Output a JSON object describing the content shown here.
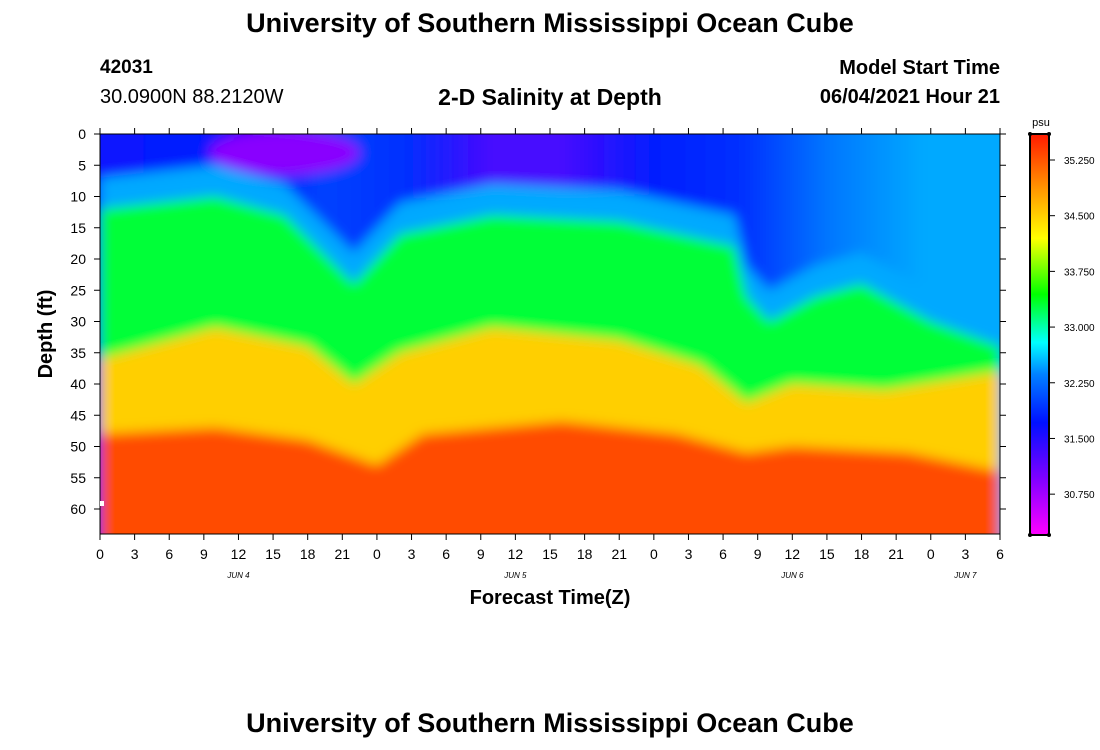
{
  "header": {
    "title": "University of Southern Mississippi Ocean Cube",
    "station_id": "42031",
    "station_coords": "30.0900N  88.2120W",
    "plot_title": "2-D Salinity at Depth",
    "model_start_label": "Model Start Time",
    "model_start_value": "06/04/2021 Hour 21"
  },
  "footer": {
    "title": "University of Southern Mississippi Ocean Cube"
  },
  "chart_data": {
    "type": "heatmap",
    "title": "2-D Salinity at Depth",
    "xlabel": "Forecast Time(Z)",
    "ylabel": "Depth (ft)",
    "x_range_hours": [
      0,
      78
    ],
    "y_range_ft": [
      0,
      64
    ],
    "y_ticks": [
      0,
      5,
      10,
      15,
      20,
      25,
      30,
      35,
      40,
      45,
      50,
      55,
      60
    ],
    "x_tick_hours": [
      0,
      3,
      6,
      9,
      12,
      15,
      18,
      21,
      24,
      27,
      30,
      33,
      36,
      39,
      42,
      45,
      48,
      51,
      54,
      57,
      60,
      63,
      66,
      69,
      72,
      75,
      78
    ],
    "x_tick_labels": [
      "0",
      "3",
      "6",
      "9",
      "12",
      "15",
      "18",
      "21",
      "0",
      "3",
      "6",
      "9",
      "12",
      "15",
      "18",
      "21",
      "0",
      "3",
      "6",
      "9",
      "12",
      "15",
      "18",
      "21",
      "0",
      "3",
      "6"
    ],
    "day_labels": [
      {
        "text": "JUN 4",
        "hour": 12
      },
      {
        "text": "JUN 5",
        "hour": 36
      },
      {
        "text": "JUN 6",
        "hour": 60
      },
      {
        "text": "JUN 7",
        "hour": 75
      }
    ],
    "colorbar": {
      "unit": "psu",
      "min": 30.2,
      "max": 35.6,
      "ticks": [
        "35.250",
        "34.500",
        "33.750",
        "33.000",
        "32.250",
        "31.500",
        "30.750"
      ],
      "tick_values": [
        35.25,
        34.5,
        33.75,
        33.0,
        32.25,
        31.5,
        30.75
      ]
    },
    "surface_salinity_psu": [
      {
        "hour": 0,
        "value": 31.6
      },
      {
        "hour": 8,
        "value": 31.8
      },
      {
        "hour": 14,
        "value": 31.6
      },
      {
        "hour": 20,
        "value": 32.0
      },
      {
        "hour": 27,
        "value": 31.9
      },
      {
        "hour": 34,
        "value": 31.3
      },
      {
        "hour": 40,
        "value": 31.3
      },
      {
        "hour": 48,
        "value": 31.8
      },
      {
        "hour": 55,
        "value": 31.9
      },
      {
        "hour": 62,
        "value": 32.3
      },
      {
        "hour": 70,
        "value": 32.5
      },
      {
        "hour": 78,
        "value": 32.5
      }
    ],
    "isohaline_depth_ft": [
      {
        "level_psu": 33.3,
        "points": [
          {
            "hour": 0,
            "depth": 12
          },
          {
            "hour": 10,
            "depth": 10
          },
          {
            "hour": 16,
            "depth": 13
          },
          {
            "hour": 22,
            "depth": 24
          },
          {
            "hour": 26,
            "depth": 16
          },
          {
            "hour": 34,
            "depth": 13
          },
          {
            "hour": 45,
            "depth": 14
          },
          {
            "hour": 55,
            "depth": 18
          },
          {
            "hour": 56,
            "depth": 26
          },
          {
            "hour": 58,
            "depth": 30
          },
          {
            "hour": 62,
            "depth": 26
          },
          {
            "hour": 66,
            "depth": 24
          },
          {
            "hour": 72,
            "depth": 30
          },
          {
            "hour": 78,
            "depth": 34
          }
        ]
      },
      {
        "level_psu": 34.5,
        "points": [
          {
            "hour": 0,
            "depth": 36
          },
          {
            "hour": 10,
            "depth": 31
          },
          {
            "hour": 18,
            "depth": 34
          },
          {
            "hour": 22,
            "depth": 40
          },
          {
            "hour": 26,
            "depth": 35
          },
          {
            "hour": 34,
            "depth": 31
          },
          {
            "hour": 45,
            "depth": 33
          },
          {
            "hour": 52,
            "depth": 37
          },
          {
            "hour": 56,
            "depth": 43
          },
          {
            "hour": 60,
            "depth": 40
          },
          {
            "hour": 68,
            "depth": 41
          },
          {
            "hour": 78,
            "depth": 38
          }
        ]
      },
      {
        "level_psu": 35.3,
        "points": [
          {
            "hour": 0,
            "depth": 48
          },
          {
            "hour": 10,
            "depth": 47
          },
          {
            "hour": 18,
            "depth": 49
          },
          {
            "hour": 24,
            "depth": 53
          },
          {
            "hour": 28,
            "depth": 48
          },
          {
            "hour": 40,
            "depth": 46
          },
          {
            "hour": 50,
            "depth": 48
          },
          {
            "hour": 56,
            "depth": 51
          },
          {
            "hour": 60,
            "depth": 50
          },
          {
            "hour": 70,
            "depth": 51
          },
          {
            "hour": 78,
            "depth": 54
          }
        ]
      }
    ],
    "minimum_salinity_patch": {
      "hour": 16,
      "depth": 3,
      "value": 30.9
    }
  }
}
